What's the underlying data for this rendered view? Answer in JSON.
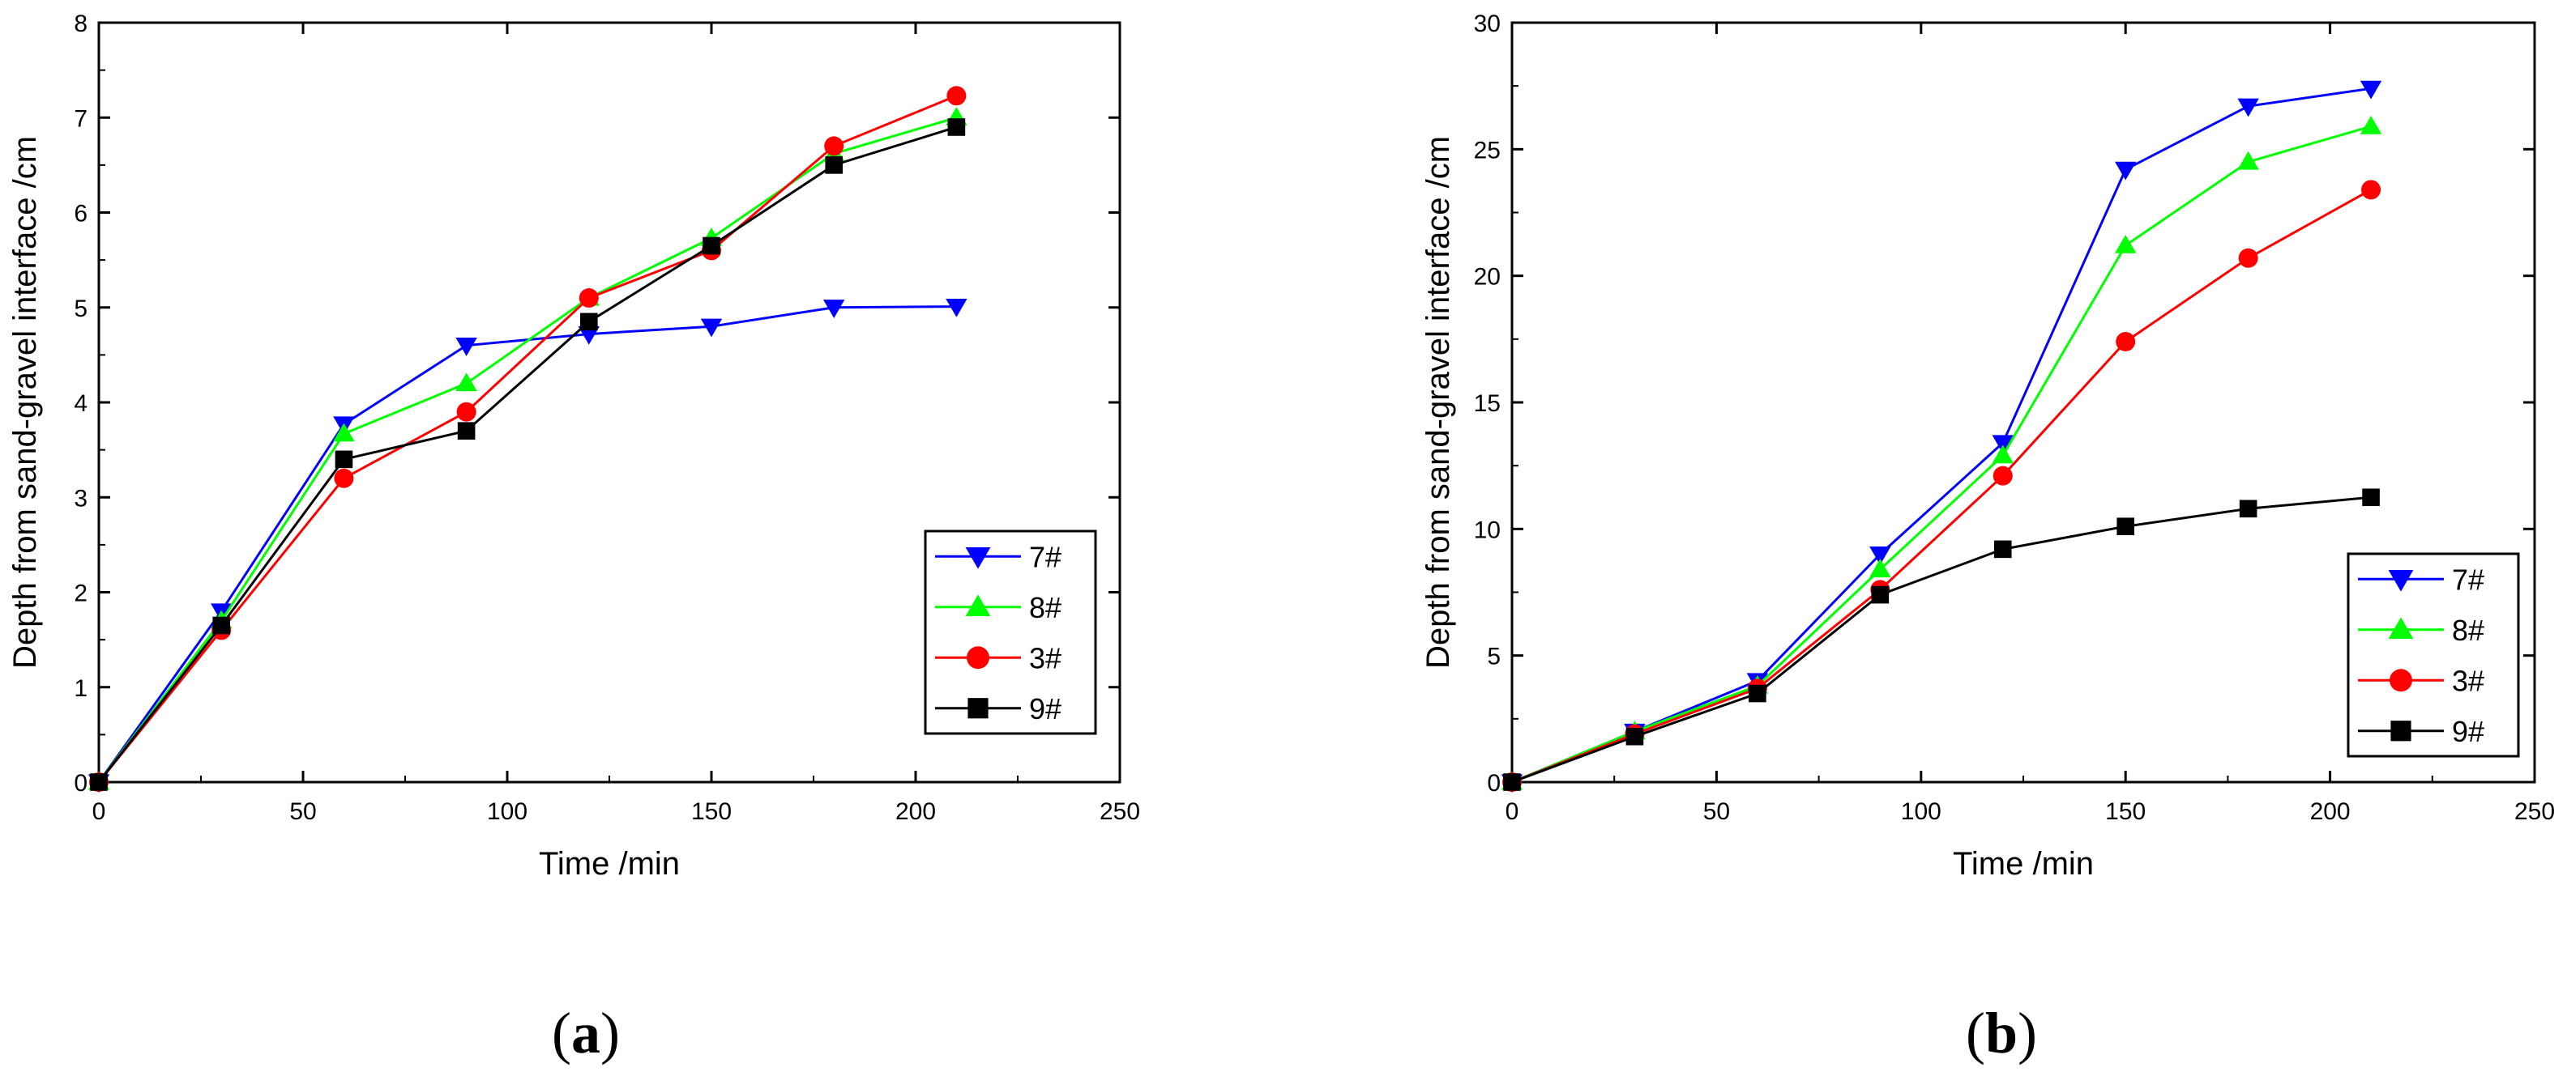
{
  "chart_data": [
    {
      "type": "line",
      "panel": "a",
      "caption": "(a)",
      "xlabel": "Time /min",
      "ylabel": "Depth from sand-gravel interface /cm",
      "xlim": [
        0,
        250
      ],
      "ylim": [
        0,
        8
      ],
      "xticks": [
        0,
        50,
        100,
        150,
        200,
        250
      ],
      "yticks": [
        0,
        1,
        2,
        3,
        4,
        5,
        6,
        7,
        8
      ],
      "legend_position": "bottom-right",
      "x": [
        0,
        30,
        60,
        90,
        120,
        150,
        180,
        210
      ],
      "series": [
        {
          "name": "7#",
          "color": "#0000ff",
          "marker": "triangle-down",
          "values": [
            0,
            1.8,
            3.77,
            4.6,
            4.72,
            4.8,
            5.0,
            5.01
          ]
        },
        {
          "name": "8#",
          "color": "#00ff00",
          "marker": "triangle-up",
          "values": [
            0,
            1.7,
            3.67,
            4.2,
            5.1,
            5.73,
            6.62,
            7.0
          ]
        },
        {
          "name": "3#",
          "color": "#ff0000",
          "marker": "circle",
          "values": [
            0,
            1.6,
            3.2,
            3.9,
            5.1,
            5.6,
            6.7,
            7.23
          ]
        },
        {
          "name": "9#",
          "color": "#000000",
          "marker": "square",
          "values": [
            0,
            1.65,
            3.4,
            3.7,
            4.85,
            5.65,
            6.5,
            6.9
          ]
        }
      ]
    },
    {
      "type": "line",
      "panel": "b",
      "caption": "(b)",
      "xlabel": "Time /min",
      "ylabel": "Depth from sand-gravel interface /cm",
      "xlim": [
        0,
        250
      ],
      "ylim": [
        0,
        30
      ],
      "xticks": [
        0,
        50,
        100,
        150,
        200,
        250
      ],
      "yticks": [
        0,
        5,
        10,
        15,
        20,
        25,
        30
      ],
      "legend_position": "bottom-right",
      "x": [
        0,
        30,
        60,
        90,
        120,
        150,
        180,
        210
      ],
      "series": [
        {
          "name": "7#",
          "color": "#0000ff",
          "marker": "triangle-down",
          "values": [
            0,
            2.0,
            4.0,
            9.0,
            13.4,
            24.2,
            26.7,
            27.4
          ]
        },
        {
          "name": "8#",
          "color": "#00ff00",
          "marker": "triangle-up",
          "values": [
            0,
            2.0,
            3.8,
            8.4,
            12.9,
            21.2,
            24.5,
            25.9
          ]
        },
        {
          "name": "3#",
          "color": "#ff0000",
          "marker": "circle",
          "values": [
            0,
            1.9,
            3.7,
            7.6,
            12.1,
            17.4,
            20.7,
            23.4
          ]
        },
        {
          "name": "9#",
          "color": "#000000",
          "marker": "square",
          "values": [
            0,
            1.8,
            3.5,
            7.4,
            9.2,
            10.1,
            10.8,
            11.25
          ]
        }
      ]
    }
  ]
}
